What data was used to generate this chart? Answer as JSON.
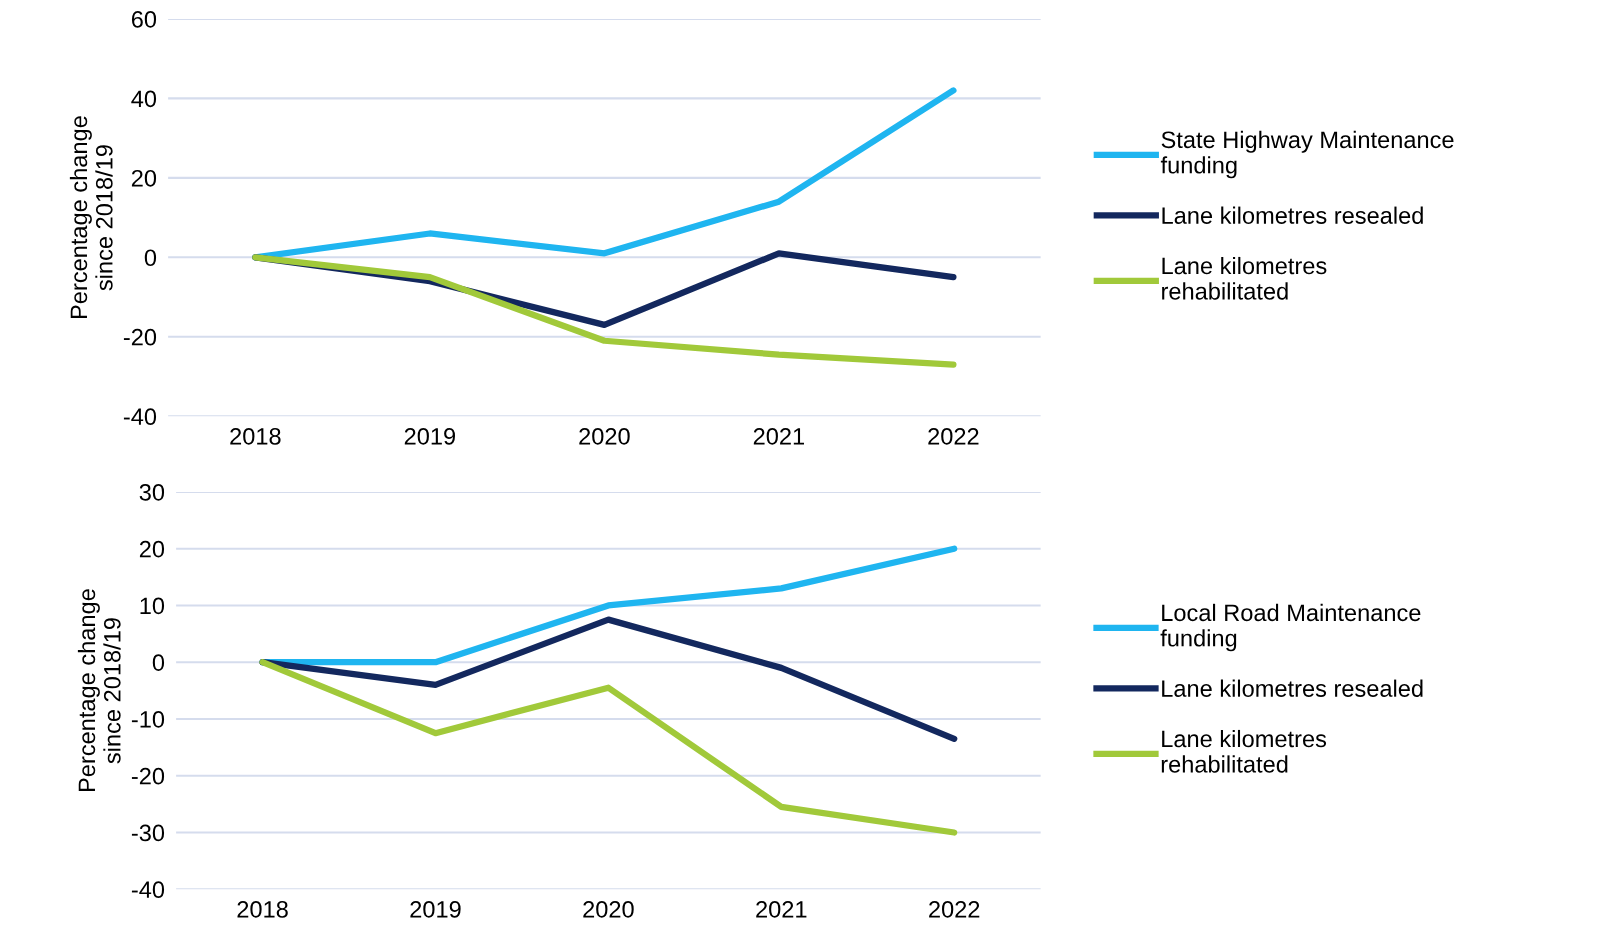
{
  "chart_data": [
    {
      "type": "line",
      "ylabel": "Percentage change since 2018/19",
      "categories": [
        "2018",
        "2019",
        "2020",
        "2021",
        "2022"
      ],
      "series": [
        {
          "name": "State Highway Maintenance funding",
          "color": "#1fb5f0",
          "values": [
            0,
            6,
            1,
            14,
            42
          ]
        },
        {
          "name": "Lane kilometres resealed",
          "color": "#13285e",
          "values": [
            0,
            -6,
            -17,
            1,
            -5
          ]
        },
        {
          "name": "Lane kilometres rehabilitated",
          "color": "#a1c93a",
          "values": [
            0,
            -5,
            -21,
            -24.5,
            -27
          ]
        }
      ],
      "ylim": [
        -40,
        60
      ],
      "yticks": [
        -40,
        -20,
        0,
        20,
        40,
        60
      ],
      "grid": "y",
      "legend": "right",
      "marker": "none",
      "line_style": "solid"
    },
    {
      "type": "line",
      "ylabel": "Percentage change since 2018/19",
      "categories": [
        "2018",
        "2019",
        "2020",
        "2021",
        "2022"
      ],
      "series": [
        {
          "name": "Local Road Maintenance funding",
          "color": "#1fb5f0",
          "values": [
            0,
            0,
            10,
            13,
            20
          ]
        },
        {
          "name": "Lane kilometres resealed",
          "color": "#13285e",
          "values": [
            0,
            -4,
            7.5,
            -1,
            -13.5
          ]
        },
        {
          "name": "Lane kilometres rehabilitated",
          "color": "#a1c93a",
          "values": [
            0,
            -12.5,
            -4.5,
            -25.5,
            -30
          ]
        }
      ],
      "ylim": [
        -40,
        30
      ],
      "yticks": [
        -40,
        -30,
        -20,
        -10,
        0,
        10,
        20,
        30
      ],
      "grid": "y",
      "legend": "right",
      "marker": "none",
      "line_style": "solid"
    }
  ]
}
